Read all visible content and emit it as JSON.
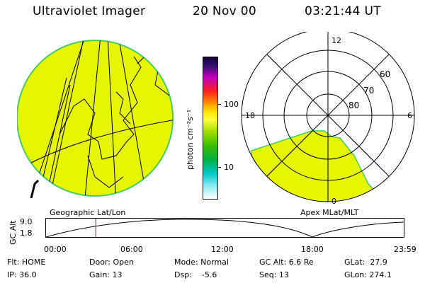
{
  "header": {
    "instrument": "Ultraviolet Imager",
    "date": "20 Nov 00",
    "time": "03:21:44 UT"
  },
  "colorbar": {
    "unit_label": "photon cm⁻²s⁻¹",
    "ticks": [
      "100",
      "10"
    ]
  },
  "polar_plot": {
    "mlt_labels": [
      "12",
      "18",
      "6",
      "0"
    ],
    "lat_labels": [
      "60",
      "70",
      "80"
    ]
  },
  "panel_labels": {
    "left": "Geographic Lat/Lon",
    "right": "Apex MLat/MLT"
  },
  "altitude_plot": {
    "ylabel": "GC Alt",
    "ymax_label": "9.0",
    "ymin_label": "1.8",
    "x_ticks": [
      "00:00",
      "06:00",
      "12:00",
      "18:00",
      "23:59"
    ],
    "current_time_fraction": 0.139
  },
  "info": {
    "flt": "Flt: HOME",
    "ip": "IP: 36.0",
    "door": "Door: Open",
    "gain": "Gain: 13",
    "mode": "Mode: Normal",
    "dsp": "Dsp:    -5.6",
    "gcalt": "GC Alt: 6.6 Re",
    "seq": "Seq: 13",
    "glat": "GLat:  27.9",
    "glon": "GLon: 274.1"
  },
  "colors": {
    "image_fill": "#e6f500",
    "image_edge": "#44cc66",
    "marker": "#cc0000"
  }
}
